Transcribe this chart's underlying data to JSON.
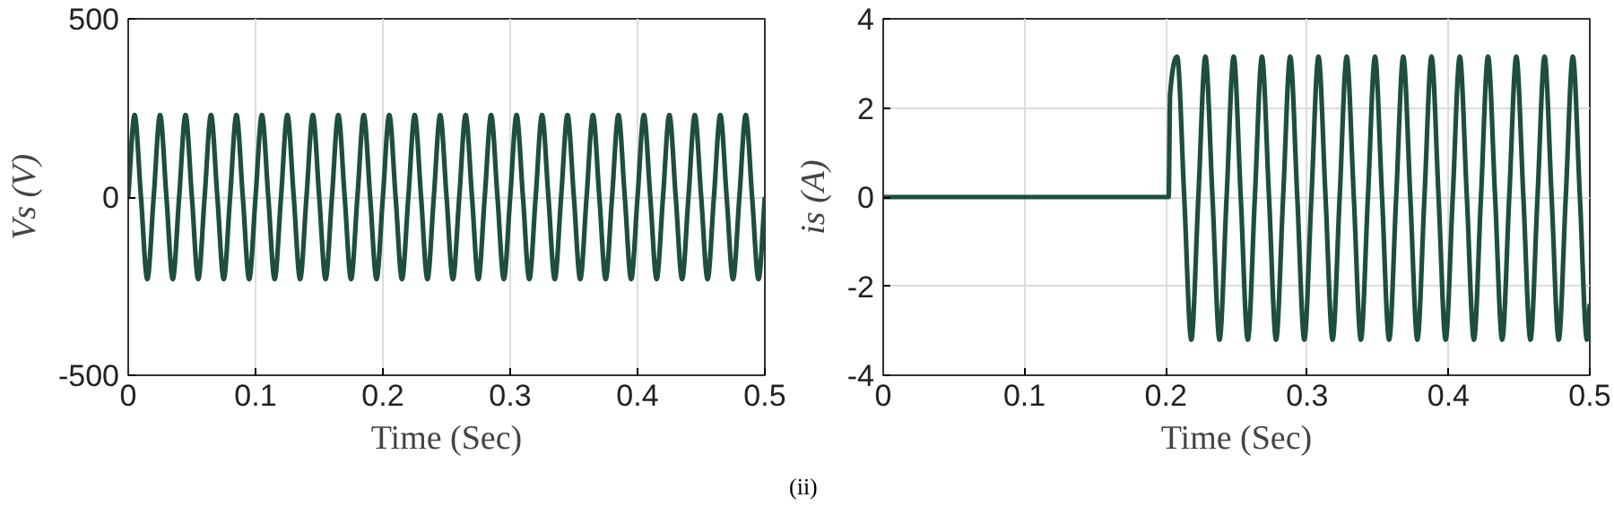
{
  "chart_data": [
    {
      "type": "line",
      "xlabel": "Time (Sec)",
      "ylabel": "Vs (V)",
      "xlim": [
        0,
        0.5
      ],
      "ylim": [
        -500,
        500
      ],
      "xticks": [
        0,
        0.1,
        0.2,
        0.3,
        0.4,
        0.5
      ],
      "yticks": [
        -500,
        0,
        500
      ],
      "grid": true,
      "annotations": [
        "(ii)"
      ],
      "series": [
        {
          "color": "#1d4f3a",
          "x": [
            0,
            0.005,
            0.01,
            0.015,
            0.02,
            0.025,
            0.03,
            0.035,
            0.04,
            0.045,
            0.05,
            0.055,
            0.06,
            0.065,
            0.07,
            0.075,
            0.08,
            0.085,
            0.09,
            0.095,
            0.1,
            0.105,
            0.11,
            0.115,
            0.12,
            0.125,
            0.13,
            0.135,
            0.14,
            0.145,
            0.15,
            0.155,
            0.16,
            0.165,
            0.17,
            0.175,
            0.18,
            0.185,
            0.19,
            0.195,
            0.2,
            0.205,
            0.21,
            0.215,
            0.22,
            0.225,
            0.23,
            0.235,
            0.24,
            0.245,
            0.25,
            0.255,
            0.26,
            0.265,
            0.27,
            0.275,
            0.28,
            0.285,
            0.29,
            0.295,
            0.3,
            0.305,
            0.31,
            0.315,
            0.32,
            0.325,
            0.33,
            0.335,
            0.34,
            0.345,
            0.35,
            0.355,
            0.36,
            0.365,
            0.37,
            0.375,
            0.38,
            0.385,
            0.39,
            0.395,
            0.4,
            0.405,
            0.41,
            0.415,
            0.42,
            0.425,
            0.43,
            0.435,
            0.44,
            0.445,
            0.45,
            0.455,
            0.46,
            0.465,
            0.47,
            0.475,
            0.48,
            0.485,
            0.49,
            0.495,
            0.5
          ],
          "values": [
            0,
            230,
            0,
            -230,
            0,
            230,
            0,
            -230,
            0,
            230,
            0,
            -230,
            0,
            230,
            0,
            -230,
            0,
            230,
            0,
            -230,
            0,
            230,
            0,
            -230,
            0,
            230,
            0,
            -230,
            0,
            230,
            0,
            -230,
            0,
            230,
            0,
            -230,
            0,
            230,
            0,
            -230,
            0,
            230,
            0,
            -230,
            0,
            230,
            0,
            -230,
            0,
            230,
            0,
            -230,
            0,
            230,
            0,
            -230,
            0,
            230,
            0,
            -230,
            0,
            230,
            0,
            -230,
            0,
            230,
            0,
            -230,
            0,
            230,
            0,
            -230,
            0,
            230,
            0,
            -230,
            0,
            230,
            0,
            -230,
            0,
            230,
            0,
            -230,
            0,
            230,
            0,
            -230,
            0,
            230,
            0,
            -230,
            0,
            230,
            0,
            -230,
            0,
            230,
            0,
            -230,
            0
          ]
        }
      ]
    },
    {
      "type": "line",
      "xlabel": "Time (Sec)",
      "ylabel": "is (A)",
      "xlim": [
        0,
        0.5
      ],
      "ylim": [
        -4,
        4
      ],
      "xticks": [
        0,
        0.1,
        0.2,
        0.3,
        0.4,
        0.5
      ],
      "yticks": [
        -4,
        -2,
        0,
        2,
        4
      ],
      "grid": true,
      "series": [
        {
          "color": "#1d4f3a",
          "x": [
            0,
            0.202,
            0.203,
            0.208,
            0.213,
            0.218,
            0.223,
            0.228,
            0.233,
            0.238,
            0.243,
            0.248,
            0.253,
            0.258,
            0.263,
            0.268,
            0.273,
            0.278,
            0.283,
            0.288,
            0.293,
            0.298,
            0.303,
            0.308,
            0.313,
            0.318,
            0.323,
            0.328,
            0.333,
            0.338,
            0.343,
            0.348,
            0.353,
            0.358,
            0.363,
            0.368,
            0.373,
            0.378,
            0.383,
            0.388,
            0.393,
            0.398,
            0.403,
            0.408,
            0.413,
            0.418,
            0.423,
            0.428,
            0.433,
            0.438,
            0.443,
            0.448,
            0.453,
            0.458,
            0.463,
            0.468,
            0.473,
            0.478,
            0.483,
            0.488,
            0.493,
            0.498,
            0.5
          ],
          "values": [
            0,
            0,
            2.3,
            3.15,
            0,
            -3.2,
            0,
            3.15,
            0,
            -3.2,
            0,
            3.15,
            0,
            -3.2,
            0,
            3.15,
            0,
            -3.2,
            0,
            3.15,
            0,
            -3.2,
            0,
            3.15,
            0,
            -3.2,
            0,
            3.15,
            0,
            -3.2,
            0,
            3.15,
            0,
            -3.2,
            0,
            3.15,
            0,
            -3.2,
            0,
            3.15,
            0,
            -3.2,
            0,
            3.15,
            0,
            -3.2,
            0,
            3.15,
            0,
            -3.2,
            0,
            3.15,
            0,
            -3.2,
            0,
            3.15,
            0,
            -3.2,
            0,
            3.15,
            0,
            -3.2,
            -2.4
          ]
        }
      ]
    }
  ]
}
